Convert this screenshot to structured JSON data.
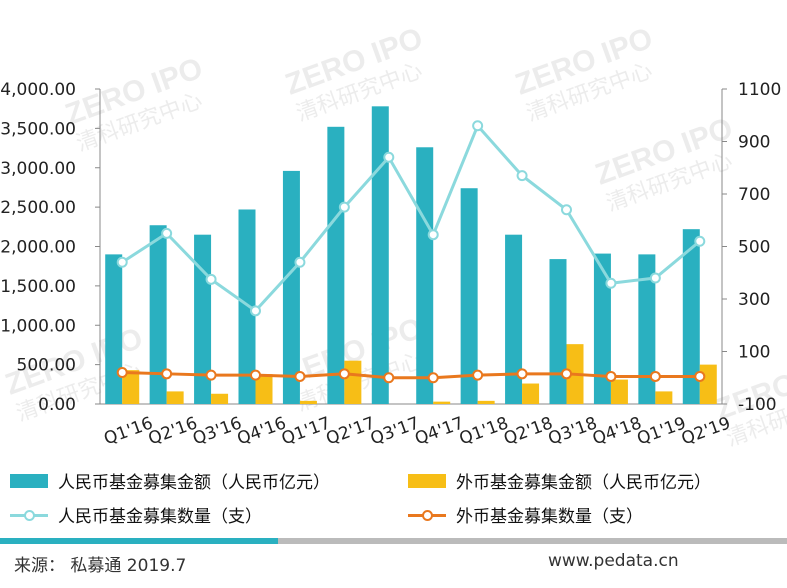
{
  "chart_data": {
    "type": "bar",
    "categories": [
      "Q1'16",
      "Q2'16",
      "Q3'16",
      "Q4'16",
      "Q1'17",
      "Q2'17",
      "Q3'17",
      "Q4'17",
      "Q1'18",
      "Q2'18",
      "Q3'18",
      "Q4'18",
      "Q1'19",
      "Q2'19"
    ],
    "series": [
      {
        "name": "人民币基金募集金额（人民币亿元）",
        "type": "bar",
        "axis": "left",
        "color": "#2ab0c0",
        "values": [
          1900,
          2270,
          2150,
          2470,
          2960,
          3520,
          3780,
          3260,
          2740,
          2150,
          1840,
          1910,
          1900,
          2220
        ]
      },
      {
        "name": "外币基金募集金额（人民币亿元）",
        "type": "bar",
        "axis": "left",
        "color": "#f7be16",
        "values": [
          430,
          160,
          130,
          380,
          40,
          550,
          0,
          30,
          40,
          260,
          760,
          310,
          160,
          500
        ]
      },
      {
        "name": "人民币基金募集数量（支）",
        "type": "line",
        "axis": "right",
        "color": "#8bd9dd",
        "values": [
          440,
          550,
          375,
          255,
          440,
          650,
          840,
          545,
          960,
          770,
          640,
          360,
          380,
          520
        ]
      },
      {
        "name": "外币基金募集数量（支）",
        "type": "line",
        "axis": "right",
        "color": "#e9781e",
        "values": [
          20,
          15,
          10,
          10,
          5,
          15,
          0,
          0,
          10,
          15,
          15,
          5,
          5,
          5
        ]
      }
    ],
    "left_axis": {
      "min": 0,
      "max": 4000,
      "ticks": [
        "0.00",
        "500.00",
        "1,000.00",
        "1,500.00",
        "2,000.00",
        "2,500.00",
        "3,000.00",
        "3,500.00",
        "4,000.00"
      ]
    },
    "right_axis": {
      "min": -100,
      "max": 1100,
      "ticks": [
        "-100",
        "100",
        "300",
        "500",
        "700",
        "900",
        "1100"
      ]
    },
    "title": "",
    "xlabel": "",
    "ylabel": "",
    "legend_position": "bottom",
    "grid": false
  },
  "watermark": {
    "brand": "ZERO IPO",
    "sub": "清科研究中心"
  },
  "footer": {
    "source": "来源：  私募通 2019.7",
    "website": "www.pedata.cn"
  },
  "colors": {
    "teal_bar": "#2ab0c0",
    "yellow_bar": "#f7be16",
    "teal_line": "#8bd9dd",
    "orange_line": "#e9781e",
    "footer_teal": "#2ab0c0",
    "footer_gray": "#bbbbbb"
  }
}
